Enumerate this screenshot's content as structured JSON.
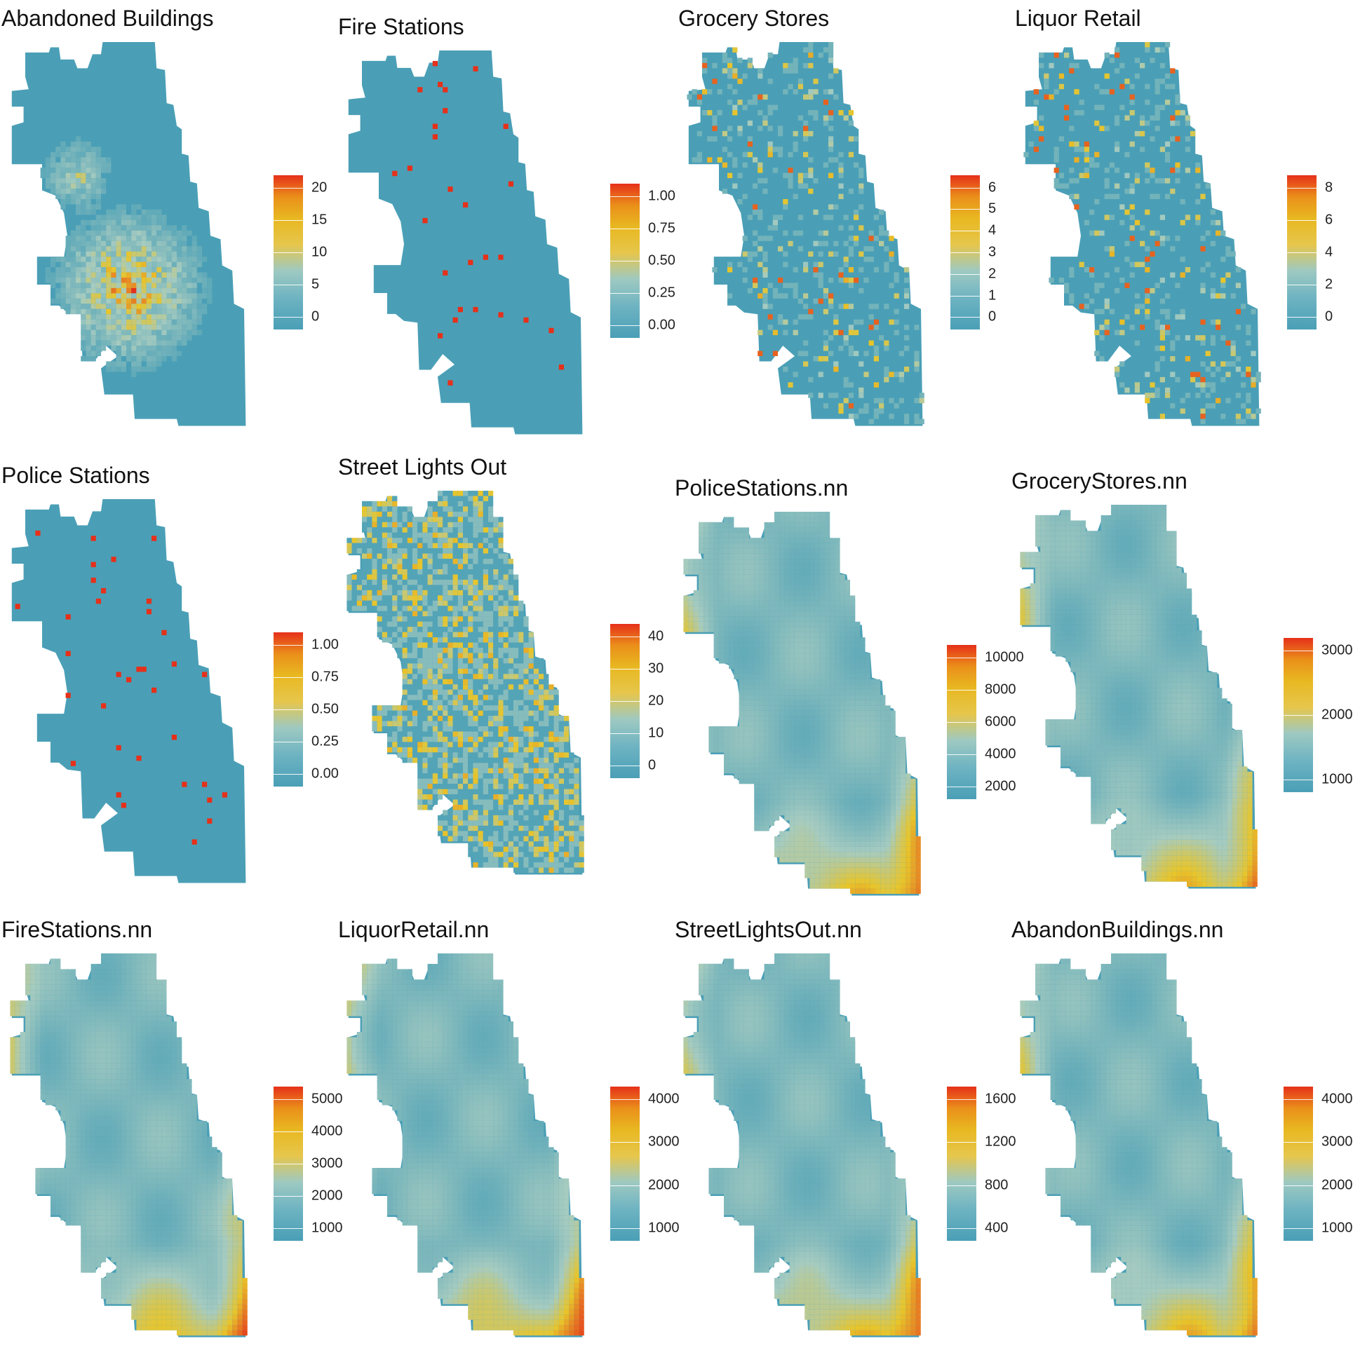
{
  "colors": {
    "low": "#4a9fb6",
    "mid": "#e8c52a",
    "high": "#e6301a"
  },
  "panels": [
    {
      "title": "Abandoned Buildings",
      "style": "hotspot",
      "legend": [
        "20",
        "15",
        "10",
        "5",
        "0"
      ]
    },
    {
      "title": "Fire Stations",
      "style": "points",
      "legend": [
        "1.00",
        "0.75",
        "0.50",
        "0.25",
        "0.00"
      ]
    },
    {
      "title": "Grocery Stores",
      "style": "sparse",
      "legend": [
        "6",
        "5",
        "4",
        "3",
        "2",
        "1",
        "0"
      ]
    },
    {
      "title": "Liquor Retail",
      "style": "sparse",
      "legend": [
        "8",
        "6",
        "4",
        "2",
        "0"
      ]
    },
    {
      "title": "Police Stations",
      "style": "points",
      "legend": [
        "1.00",
        "0.75",
        "0.50",
        "0.25",
        "0.00"
      ]
    },
    {
      "title": "Street Lights Out",
      "style": "dense",
      "legend": [
        "40",
        "30",
        "20",
        "10",
        "0"
      ]
    },
    {
      "title": "PoliceStations.nn",
      "style": "smooth",
      "legend": [
        "10000",
        "8000",
        "6000",
        "4000",
        "2000"
      ]
    },
    {
      "title": "GroceryStores.nn",
      "style": "smooth",
      "legend": [
        "3000",
        "2000",
        "1000"
      ]
    },
    {
      "title": "FireStations.nn",
      "style": "smooth",
      "legend": [
        "5000",
        "4000",
        "3000",
        "2000",
        "1000"
      ]
    },
    {
      "title": "LiquorRetail.nn",
      "style": "smooth",
      "legend": [
        "4000",
        "3000",
        "2000",
        "1000"
      ]
    },
    {
      "title": "StreetLightsOut.nn",
      "style": "smooth",
      "legend": [
        "1600",
        "1200",
        "800",
        "400"
      ]
    },
    {
      "title": "AbandonBuildings.nn",
      "style": "smooth",
      "legend": [
        "4000",
        "3000",
        "2000",
        "1000"
      ]
    }
  ]
}
